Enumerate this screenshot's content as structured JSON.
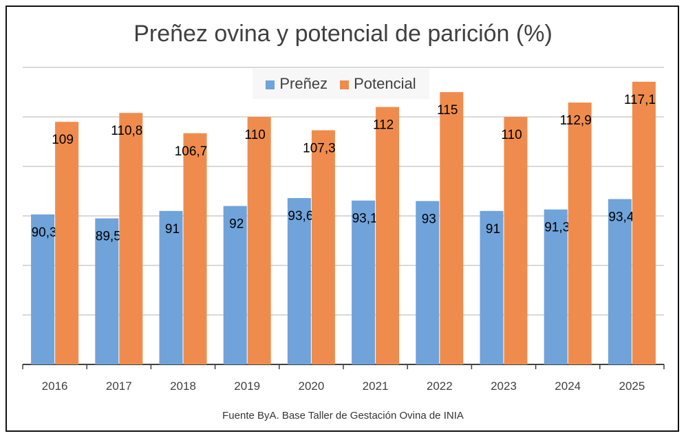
{
  "chart_data": {
    "type": "bar",
    "title": "Preñez ovina y potencial de parición (%)",
    "categories": [
      "2016",
      "2017",
      "2018",
      "2019",
      "2020",
      "2021",
      "2022",
      "2023",
      "2024",
      "2025"
    ],
    "series": [
      {
        "name": "Preñez",
        "color": "#6fa3da",
        "values": [
          90.3,
          89.5,
          91,
          92,
          93.6,
          93.1,
          93,
          91,
          91.3,
          93.4
        ],
        "labels": [
          "90,3",
          "89,5",
          "91",
          "92",
          "93,6",
          "93,1",
          "93",
          "91",
          "91,3",
          "93,4"
        ]
      },
      {
        "name": "Potencial",
        "color": "#ef8c4d",
        "values": [
          109,
          110.8,
          106.7,
          110,
          107.3,
          112,
          115,
          110,
          112.9,
          117.1
        ],
        "labels": [
          "109",
          "110,8",
          "106,7",
          "110",
          "107,3",
          "112",
          "115",
          "110",
          "112,9",
          "117,1"
        ]
      }
    ],
    "ylim": [
      60,
      120
    ],
    "ygrid": [
      70,
      80,
      90,
      100,
      110,
      120
    ],
    "grid": true,
    "legend_position": "top-center",
    "xlabel": "",
    "ylabel": ""
  },
  "source": "Fuente ByA. Base Taller de Gestación Ovina de INIA"
}
